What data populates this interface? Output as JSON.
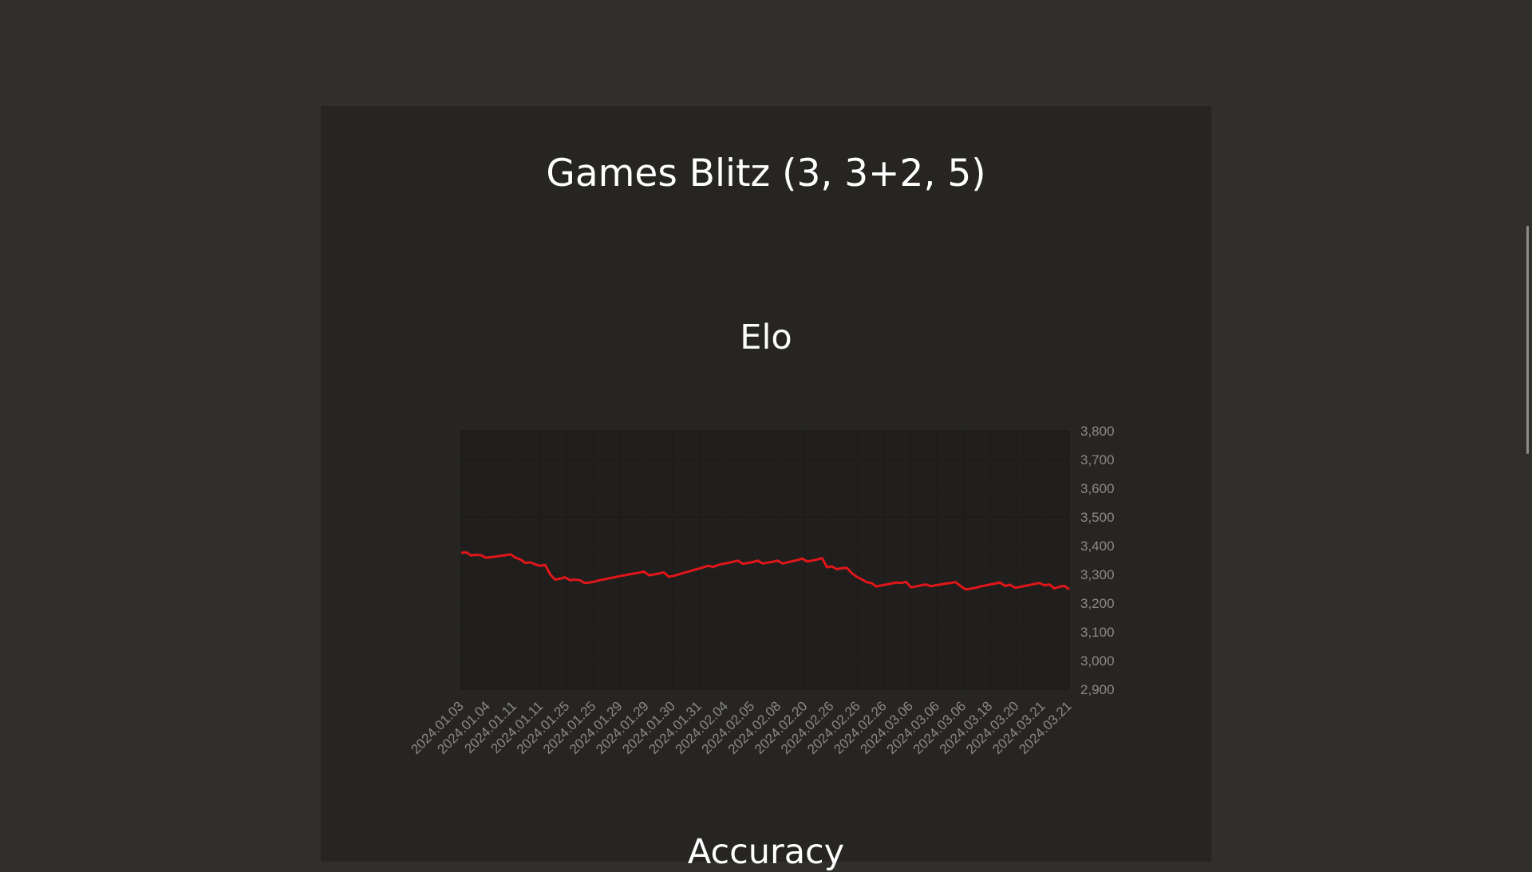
{
  "page": {
    "title": "Games Blitz (3, 3+2, 5)",
    "next_section_title": "Accuracy",
    "colors": {
      "background": "#312f2c",
      "panel": "#262522",
      "line": "#e0161a",
      "grid": "#1b1a19",
      "text": "#ffffff",
      "ticks": "#8a8986"
    }
  },
  "chart_data": {
    "type": "line",
    "title": "Elo",
    "xlabel": "",
    "ylabel": "",
    "ylim": [
      2900,
      3800
    ],
    "y_axis_position": "right",
    "y_ticks": [
      "2,900",
      "3,000",
      "3,100",
      "3,200",
      "3,300",
      "3,400",
      "3,500",
      "3,600",
      "3,700",
      "3,800"
    ],
    "x_tick_labels": [
      "2024.01.03",
      "2024.01.04",
      "2024.01.11",
      "2024.01.11",
      "2024.01.25",
      "2024.01.25",
      "2024.01.29",
      "2024.01.29",
      "2024.01.30",
      "2024.01.31",
      "2024.02.04",
      "2024.02.05",
      "2024.02.08",
      "2024.02.20",
      "2024.02.26",
      "2024.02.26",
      "2024.02.26",
      "2024.03.06",
      "2024.03.06",
      "2024.03.06",
      "2024.03.18",
      "2024.03.20",
      "2024.03.21",
      "2024.03.21"
    ],
    "grid": true,
    "series": [
      {
        "color": "#e0161a",
        "values": [
          3375,
          3377,
          3366,
          3368,
          3367,
          3358,
          3360,
          3362,
          3365,
          3367,
          3370,
          3358,
          3352,
          3340,
          3342,
          3335,
          3330,
          3333,
          3300,
          3282,
          3285,
          3290,
          3280,
          3282,
          3280,
          3270,
          3272,
          3275,
          3280,
          3283,
          3287,
          3290,
          3294,
          3297,
          3300,
          3303,
          3306,
          3310,
          3297,
          3300,
          3303,
          3307,
          3292,
          3295,
          3300,
          3305,
          3310,
          3315,
          3320,
          3325,
          3330,
          3326,
          3333,
          3337,
          3340,
          3344,
          3348,
          3337,
          3340,
          3343,
          3348,
          3338,
          3341,
          3344,
          3348,
          3338,
          3342,
          3346,
          3350,
          3355,
          3345,
          3348,
          3352,
          3357,
          3325,
          3328,
          3318,
          3322,
          3323,
          3305,
          3292,
          3283,
          3273,
          3270,
          3258,
          3262,
          3265,
          3268,
          3272,
          3270,
          3274,
          3255,
          3258,
          3262,
          3265,
          3259,
          3262,
          3265,
          3268,
          3270,
          3273,
          3260,
          3248,
          3250,
          3253,
          3258,
          3261,
          3265,
          3268,
          3272,
          3260,
          3264,
          3254,
          3256,
          3260,
          3263,
          3267,
          3270,
          3262,
          3265,
          3251,
          3257,
          3260,
          3248
        ]
      }
    ]
  }
}
